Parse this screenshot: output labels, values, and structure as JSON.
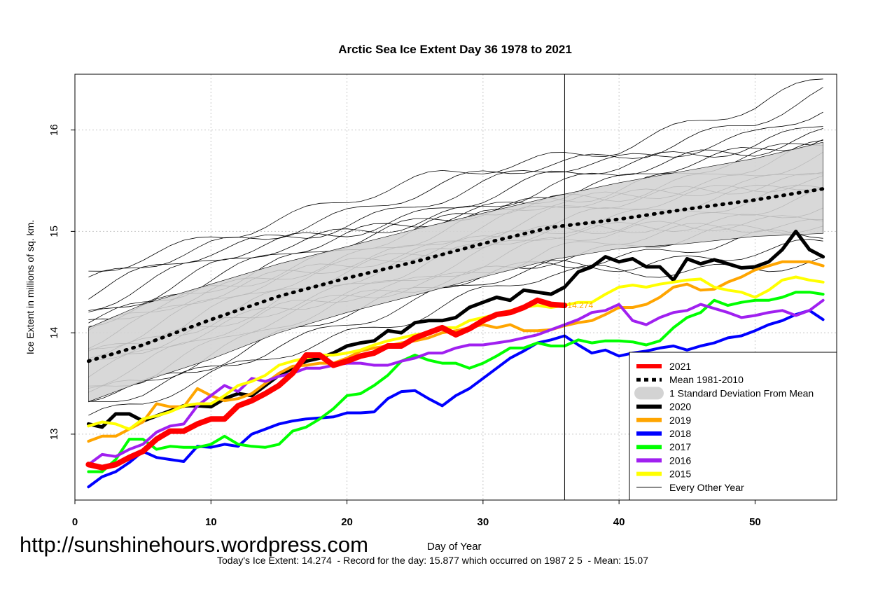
{
  "chart_data": {
    "type": "line",
    "title": "Arctic Sea Ice Extent Day 36 1978 to 2021",
    "xlabel": "Day of Year",
    "ylabel": "Ice Extent in millions of sq. km.",
    "xlim": [
      0,
      56
    ],
    "ylim": [
      12.35,
      16.55
    ],
    "xticks": [
      0,
      10,
      20,
      30,
      40,
      50
    ],
    "yticks": [
      13,
      14,
      15,
      16
    ],
    "grid": true,
    "current_day": 36,
    "current_value_label": "14.274",
    "legend": {
      "position": "bottom-right",
      "entries": [
        {
          "label": "2021",
          "color": "#ff0000",
          "style": "thick"
        },
        {
          "label": "Mean 1981-2010",
          "color": "#000000",
          "style": "dotted"
        },
        {
          "label": "1 Standard Deviation From Mean",
          "color": "#d3d3d3",
          "style": "band"
        },
        {
          "label": "2020",
          "color": "#000000",
          "style": "thick"
        },
        {
          "label": "2019",
          "color": "#ffa500",
          "style": "thick"
        },
        {
          "label": "2018",
          "color": "#0000ff",
          "style": "thick"
        },
        {
          "label": "2017",
          "color": "#00ff00",
          "style": "thick"
        },
        {
          "label": "2016",
          "color": "#a020f0",
          "style": "thick"
        },
        {
          "label": "2015",
          "color": "#ffff00",
          "style": "thick"
        },
        {
          "label": "Every Other Year",
          "color": "#000000",
          "style": "thin"
        }
      ]
    },
    "mean_series": {
      "x": [
        1,
        5,
        10,
        15,
        20,
        25,
        30,
        35,
        40,
        45,
        50,
        55
      ],
      "values": [
        13.72,
        13.88,
        14.13,
        14.36,
        14.54,
        14.7,
        14.88,
        15.04,
        15.12,
        15.22,
        15.31,
        15.42
      ]
    },
    "sd_band": {
      "x": [
        1,
        5,
        10,
        15,
        20,
        25,
        30,
        35,
        40,
        45,
        50,
        55
      ],
      "upper": [
        14.05,
        14.28,
        14.48,
        14.68,
        14.85,
        15.02,
        15.18,
        15.34,
        15.48,
        15.6,
        15.72,
        15.88
      ],
      "lower": [
        13.32,
        13.52,
        13.74,
        14.0,
        14.2,
        14.37,
        14.55,
        14.72,
        14.83,
        14.88,
        14.95,
        14.98
      ]
    },
    "series": [
      {
        "name": "2021",
        "color": "#ff0000",
        "width": 8,
        "x": [
          1,
          2,
          3,
          4,
          5,
          6,
          7,
          8,
          9,
          10,
          11,
          12,
          13,
          14,
          15,
          16,
          17,
          18,
          19,
          20,
          21,
          22,
          23,
          24,
          25,
          26,
          27,
          28,
          29,
          30,
          31,
          32,
          33,
          34,
          35,
          36
        ],
        "values": [
          12.7,
          12.67,
          12.7,
          12.77,
          12.83,
          12.95,
          13.03,
          13.03,
          13.1,
          13.15,
          13.15,
          13.28,
          13.33,
          13.4,
          13.48,
          13.6,
          13.78,
          13.78,
          13.68,
          13.72,
          13.77,
          13.8,
          13.87,
          13.87,
          13.95,
          14.0,
          14.05,
          13.98,
          14.04,
          14.12,
          14.18,
          14.2,
          14.25,
          14.32,
          14.28,
          14.27
        ]
      },
      {
        "name": "2020",
        "color": "#000000",
        "width": 5,
        "x": [
          1,
          2,
          3,
          4,
          5,
          6,
          7,
          8,
          9,
          10,
          11,
          12,
          13,
          14,
          15,
          16,
          17,
          18,
          19,
          20,
          21,
          22,
          23,
          24,
          25,
          26,
          27,
          28,
          29,
          30,
          31,
          32,
          33,
          34,
          35,
          36,
          37,
          38,
          39,
          40,
          41,
          42,
          43,
          44,
          45,
          46,
          47,
          48,
          49,
          50,
          51,
          52,
          53,
          54,
          55
        ],
        "values": [
          13.1,
          13.07,
          13.2,
          13.2,
          13.13,
          13.18,
          13.23,
          13.28,
          13.28,
          13.27,
          13.35,
          13.4,
          13.38,
          13.48,
          13.58,
          13.65,
          13.72,
          13.75,
          13.8,
          13.87,
          13.9,
          13.92,
          14.02,
          14.0,
          14.1,
          14.12,
          14.12,
          14.15,
          14.25,
          14.3,
          14.35,
          14.32,
          14.42,
          14.4,
          14.38,
          14.45,
          14.6,
          14.65,
          14.75,
          14.7,
          14.73,
          14.65,
          14.65,
          14.52,
          14.73,
          14.68,
          14.72,
          14.68,
          14.64,
          14.65,
          14.7,
          14.82,
          15.0,
          14.82,
          14.75
        ]
      },
      {
        "name": "2019",
        "color": "#ffa500",
        "width": 4,
        "x": [
          1,
          2,
          3,
          4,
          5,
          6,
          7,
          8,
          9,
          10,
          11,
          12,
          13,
          14,
          15,
          16,
          17,
          18,
          19,
          20,
          21,
          22,
          23,
          24,
          25,
          26,
          27,
          28,
          29,
          30,
          31,
          32,
          33,
          34,
          35,
          36,
          37,
          38,
          39,
          40,
          41,
          42,
          43,
          44,
          45,
          46,
          47,
          48,
          49,
          50,
          51,
          52,
          53,
          54,
          55
        ],
        "values": [
          12.93,
          12.98,
          12.98,
          13.05,
          13.12,
          13.3,
          13.27,
          13.27,
          13.45,
          13.38,
          13.33,
          13.35,
          13.4,
          13.5,
          13.6,
          13.67,
          13.68,
          13.7,
          13.7,
          13.75,
          13.82,
          13.85,
          13.87,
          13.9,
          13.92,
          13.95,
          14.0,
          14.02,
          14.05,
          14.08,
          14.05,
          14.08,
          14.02,
          14.02,
          14.03,
          14.07,
          14.1,
          14.12,
          14.18,
          14.25,
          14.25,
          14.28,
          14.35,
          14.45,
          14.48,
          14.42,
          14.43,
          14.5,
          14.55,
          14.62,
          14.66,
          14.7,
          14.7,
          14.7,
          14.66
        ]
      },
      {
        "name": "2018",
        "color": "#0000ff",
        "width": 4,
        "x": [
          1,
          2,
          3,
          4,
          5,
          6,
          7,
          8,
          9,
          10,
          11,
          12,
          13,
          14,
          15,
          16,
          17,
          18,
          19,
          20,
          21,
          22,
          23,
          24,
          25,
          26,
          27,
          28,
          29,
          30,
          31,
          32,
          33,
          34,
          35,
          36,
          37,
          38,
          39,
          40,
          41,
          42,
          43,
          44,
          45,
          46,
          47,
          48,
          49,
          50,
          51,
          52,
          53,
          54,
          55
        ],
        "values": [
          12.48,
          12.58,
          12.63,
          12.72,
          12.83,
          12.77,
          12.75,
          12.73,
          12.88,
          12.87,
          12.9,
          12.88,
          13.0,
          13.05,
          13.1,
          13.13,
          13.15,
          13.16,
          13.17,
          13.21,
          13.21,
          13.22,
          13.35,
          13.42,
          13.43,
          13.35,
          13.28,
          13.38,
          13.45,
          13.55,
          13.65,
          13.75,
          13.82,
          13.9,
          13.93,
          13.97,
          13.88,
          13.8,
          13.83,
          13.77,
          13.8,
          13.82,
          13.85,
          13.87,
          13.83,
          13.87,
          13.9,
          13.95,
          13.97,
          14.02,
          14.08,
          14.12,
          14.18,
          14.22,
          14.13
        ]
      },
      {
        "name": "2017",
        "color": "#00ff00",
        "width": 4,
        "x": [
          1,
          2,
          3,
          4,
          5,
          6,
          7,
          8,
          9,
          10,
          11,
          12,
          13,
          14,
          15,
          16,
          17,
          18,
          19,
          20,
          21,
          22,
          23,
          24,
          25,
          26,
          27,
          28,
          29,
          30,
          31,
          32,
          33,
          34,
          35,
          36,
          37,
          38,
          39,
          40,
          41,
          42,
          43,
          44,
          45,
          46,
          47,
          48,
          49,
          50,
          51,
          52,
          53,
          54,
          55
        ],
        "values": [
          12.63,
          12.63,
          12.75,
          12.95,
          12.95,
          12.85,
          12.88,
          12.87,
          12.87,
          12.9,
          12.98,
          12.9,
          12.88,
          12.87,
          12.9,
          13.03,
          13.07,
          13.15,
          13.25,
          13.38,
          13.4,
          13.48,
          13.58,
          13.72,
          13.78,
          13.73,
          13.7,
          13.7,
          13.65,
          13.7,
          13.77,
          13.85,
          13.85,
          13.9,
          13.87,
          13.87,
          13.93,
          13.9,
          13.92,
          13.92,
          13.91,
          13.88,
          13.92,
          14.05,
          14.15,
          14.2,
          14.32,
          14.27,
          14.3,
          14.32,
          14.32,
          14.35,
          14.4,
          14.4,
          14.38
        ]
      },
      {
        "name": "2016",
        "color": "#a020f0",
        "width": 4,
        "x": [
          1,
          2,
          3,
          4,
          5,
          6,
          7,
          8,
          9,
          10,
          11,
          12,
          13,
          14,
          15,
          16,
          17,
          18,
          19,
          20,
          21,
          22,
          23,
          24,
          25,
          26,
          27,
          28,
          29,
          30,
          31,
          32,
          33,
          34,
          35,
          36,
          37,
          38,
          39,
          40,
          41,
          42,
          43,
          44,
          45,
          46,
          47,
          48,
          49,
          50,
          51,
          52,
          53,
          54,
          55
        ],
        "values": [
          12.7,
          12.8,
          12.78,
          12.85,
          12.9,
          13.02,
          13.08,
          13.1,
          13.28,
          13.38,
          13.48,
          13.42,
          13.55,
          13.52,
          13.57,
          13.6,
          13.65,
          13.65,
          13.68,
          13.7,
          13.7,
          13.68,
          13.68,
          13.72,
          13.75,
          13.8,
          13.8,
          13.85,
          13.88,
          13.88,
          13.9,
          13.92,
          13.95,
          13.98,
          14.03,
          14.08,
          14.13,
          14.2,
          14.22,
          14.28,
          14.12,
          14.08,
          14.15,
          14.2,
          14.22,
          14.28,
          14.24,
          14.2,
          14.15,
          14.17,
          14.2,
          14.22,
          14.17,
          14.22,
          14.32
        ]
      },
      {
        "name": "2015",
        "color": "#ffff00",
        "width": 4,
        "x": [
          1,
          2,
          3,
          4,
          5,
          6,
          7,
          8,
          9,
          10,
          11,
          12,
          13,
          14,
          15,
          16,
          17,
          18,
          19,
          20,
          21,
          22,
          23,
          24,
          25,
          26,
          27,
          28,
          29,
          30,
          31,
          32,
          33,
          34,
          35,
          36,
          37,
          38,
          39,
          40,
          41,
          42,
          43,
          44,
          45,
          46,
          47,
          48,
          49,
          50,
          51,
          52,
          53,
          54,
          55
        ],
        "values": [
          13.08,
          13.12,
          13.1,
          13.05,
          13.15,
          13.18,
          13.22,
          13.28,
          13.3,
          13.3,
          13.38,
          13.48,
          13.52,
          13.58,
          13.68,
          13.72,
          13.75,
          13.78,
          13.78,
          13.8,
          13.83,
          13.88,
          13.92,
          13.95,
          13.98,
          14.0,
          14.05,
          14.05,
          14.12,
          14.15,
          14.18,
          14.22,
          14.25,
          14.27,
          14.25,
          14.27,
          14.3,
          14.3,
          14.38,
          14.45,
          14.47,
          14.45,
          14.48,
          14.5,
          14.52,
          14.53,
          14.45,
          14.42,
          14.4,
          14.35,
          14.42,
          14.52,
          14.55,
          14.52,
          14.5
        ]
      }
    ],
    "footer": "Today's Ice Extent: 14.274  - Record for the day: 15.877 which occurred on 1987 2 5  - Mean: 15.07",
    "watermark": "http://sunshinehours.wordpress.com"
  }
}
